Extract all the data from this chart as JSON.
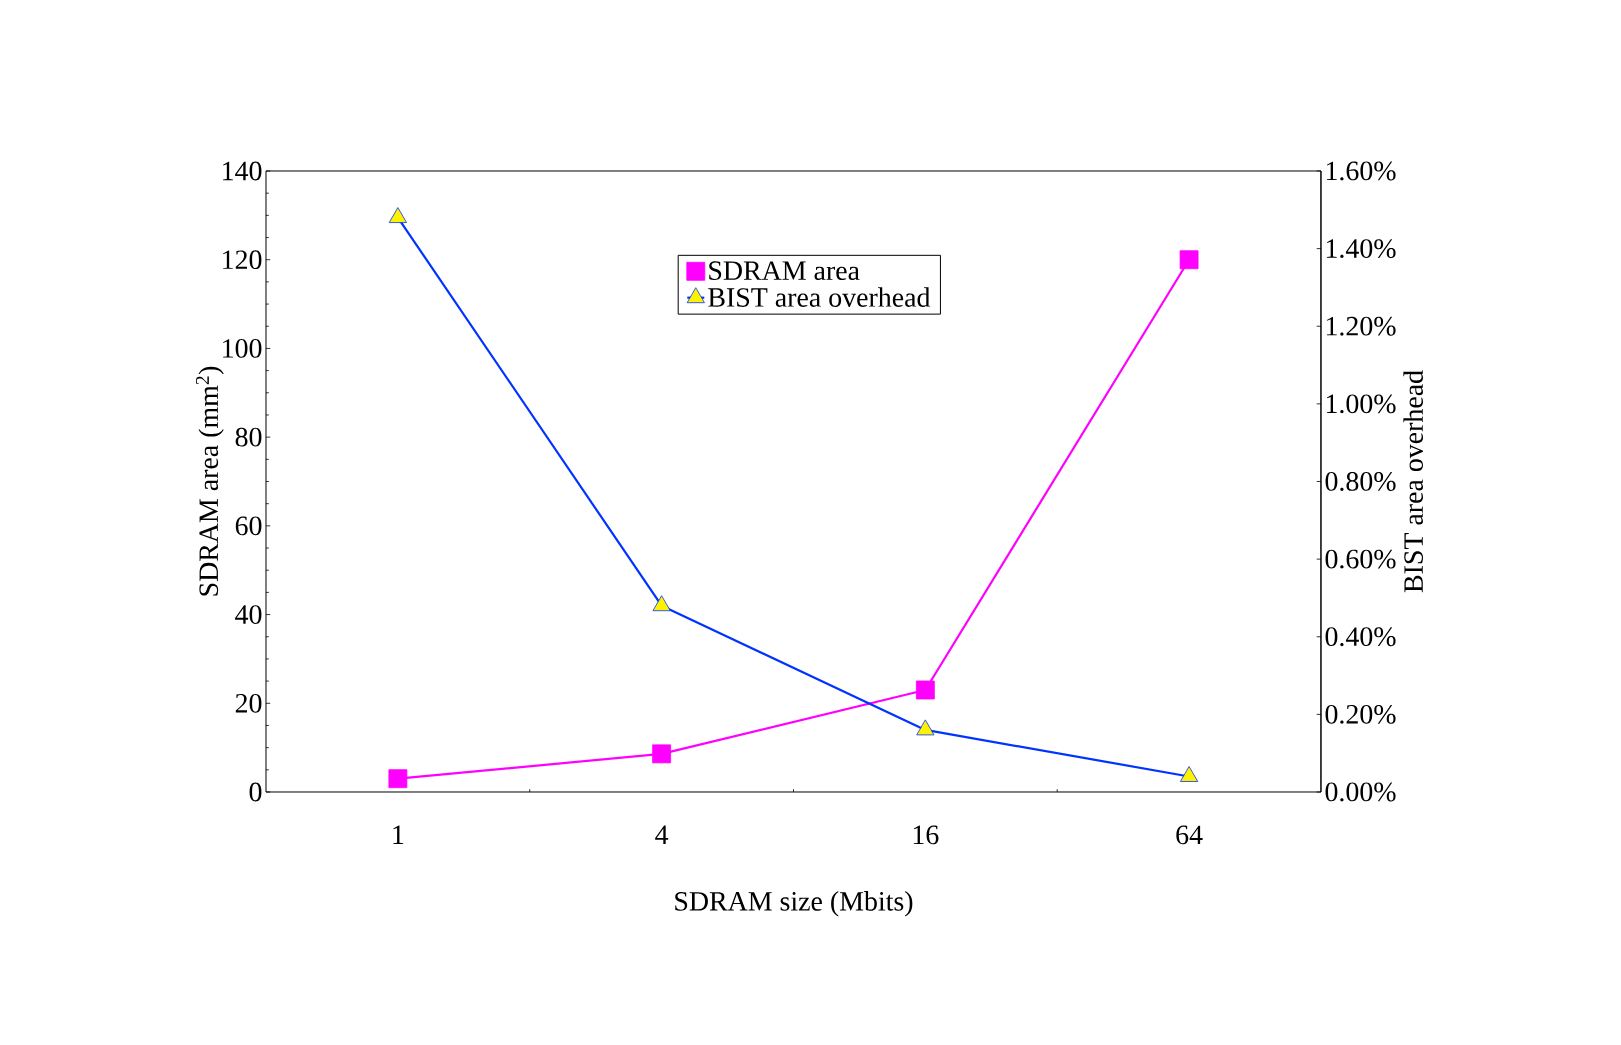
{
  "chart_data": {
    "type": "line",
    "xlabel": "SDRAM size (Mbits)",
    "ylabel": "SDRAM area (mm$^{2}$)",
    "y2label": "BIST area overhead",
    "categories": [
      "1",
      "4",
      "16",
      "64"
    ],
    "series": [
      {
        "name": "SDRAM area",
        "color": "#ff00ff",
        "marker": "square",
        "values": [
          3,
          8.6,
          23,
          120
        ]
      },
      {
        "name": "BIST area overhead",
        "color": "#0033ff",
        "marker": "triangle",
        "axis": "y2",
        "values": [
          1.48,
          0.48,
          0.16,
          0.04
        ]
      }
    ],
    "ylim": [
      0,
      140
    ],
    "yticks": [
      0,
      20,
      40,
      60,
      80,
      100,
      120,
      140
    ],
    "y2lim": [
      0,
      1.6
    ],
    "y2ticks": [
      {
        "value": 0,
        "label": "0.00%"
      },
      {
        "value": 0.2,
        "label": "0.20%"
      },
      {
        "value": 0.4,
        "label": "0.40%"
      },
      {
        "value": 0.6,
        "label": "0.60%"
      },
      {
        "value": 0.8,
        "label": "0.80%"
      },
      {
        "value": 1.0,
        "label": "1.00%"
      },
      {
        "value": 1.2,
        "label": "1.20%"
      },
      {
        "value": 1.4,
        "label": "1.40%"
      },
      {
        "value": 1.6,
        "label": "1.60%"
      }
    ],
    "legend": "top",
    "grid": false
  }
}
